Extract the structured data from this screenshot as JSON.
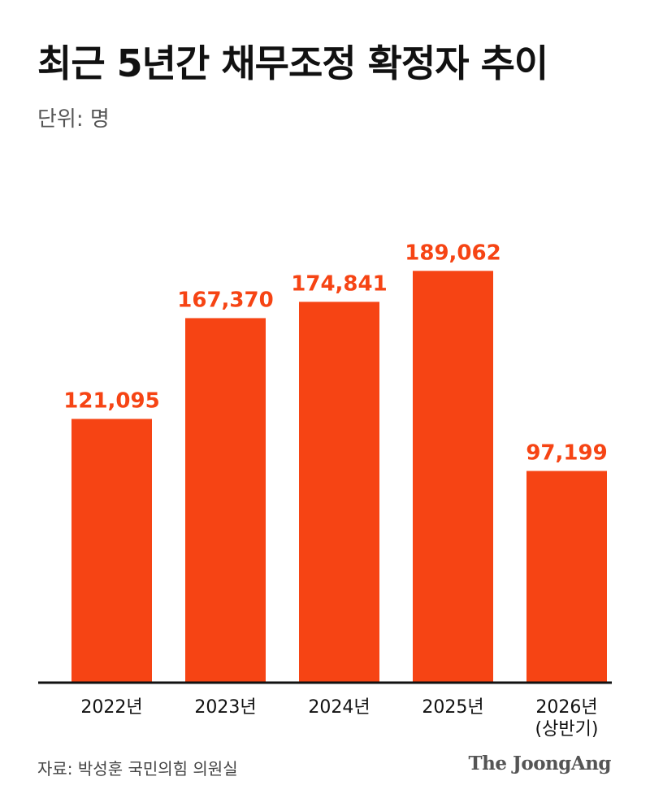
{
  "title": "최근 5년간 채무조정 확정자 추이",
  "unit_label": "단위: 명",
  "source": "자료: 박성훈 국민의힘 의원실",
  "brand": "The JoongAng",
  "colors": {
    "bar": "#f64414",
    "value_label": "#f64414",
    "axis": "#111111",
    "text": "#111111"
  },
  "chart_data": {
    "type": "bar",
    "title": "최근 5년간 채무조정 확정자 추이",
    "xlabel": "",
    "ylabel": "",
    "categories": [
      [
        "2022년"
      ],
      [
        "2023년"
      ],
      [
        "2024년"
      ],
      [
        "2025년"
      ],
      [
        "2026년",
        "(상반기)"
      ]
    ],
    "values": [
      121095,
      167370,
      174841,
      189062,
      97199
    ],
    "value_labels": [
      "121,095",
      "167,370",
      "174,841",
      "189,062",
      "97,199"
    ],
    "ylim": [
      0,
      200000
    ],
    "grid": false,
    "legend": "none"
  }
}
